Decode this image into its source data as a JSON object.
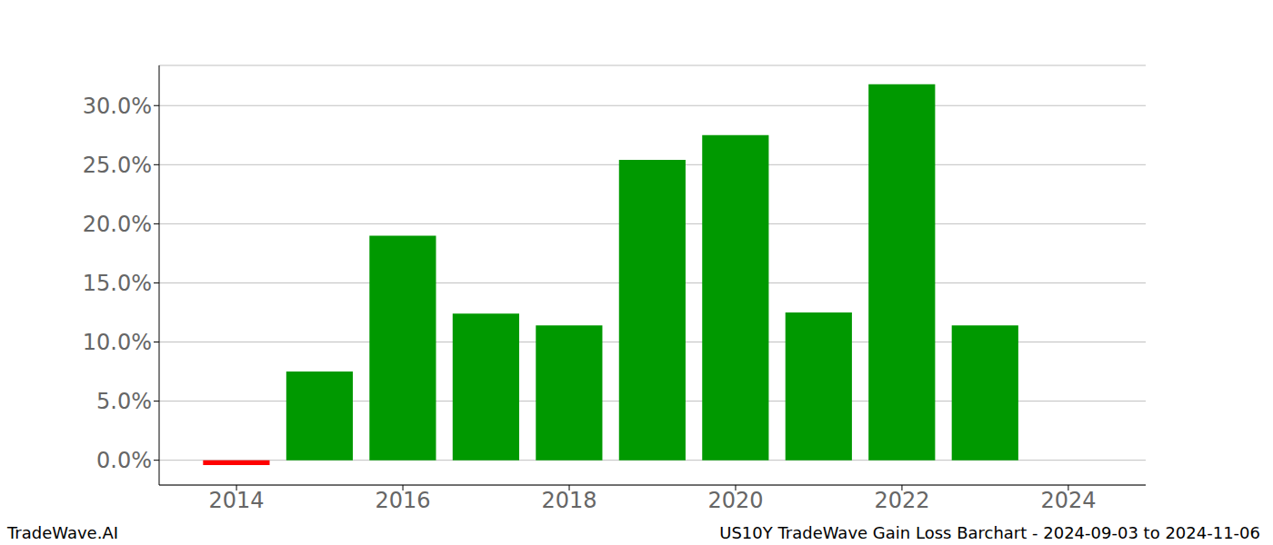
{
  "chart_data": {
    "type": "bar",
    "title": "US10Y TradeWave Gain Loss Barchart - 2024-09-03 to 2024-11-06",
    "annotations": [
      "TradeWave.AI"
    ],
    "x": [
      2014,
      2015,
      2016,
      2017,
      2018,
      2019,
      2020,
      2021,
      2022,
      2023
    ],
    "values": [
      -0.4,
      7.5,
      19.0,
      12.4,
      11.4,
      25.4,
      27.5,
      12.5,
      31.8,
      11.4
    ],
    "colors": [
      "#ff0000",
      "#009900",
      "#009900",
      "#009900",
      "#009900",
      "#009900",
      "#009900",
      "#009900",
      "#009900",
      "#009900"
    ],
    "xlim": [
      2013.07,
      2024.93
    ],
    "xticks": [
      2014,
      2016,
      2018,
      2020,
      2022,
      2024
    ],
    "ylim": [
      -2.1,
      33.4
    ],
    "yticks": [
      {
        "value": 0,
        "label": "0.0%"
      },
      {
        "value": 5,
        "label": "5.0%"
      },
      {
        "value": 10,
        "label": "10.0%"
      },
      {
        "value": 15,
        "label": "15.0%"
      },
      {
        "value": 20,
        "label": "20.0%"
      },
      {
        "value": 25,
        "label": "25.0%"
      },
      {
        "value": 30,
        "label": "30.0%"
      }
    ],
    "grid": true
  }
}
